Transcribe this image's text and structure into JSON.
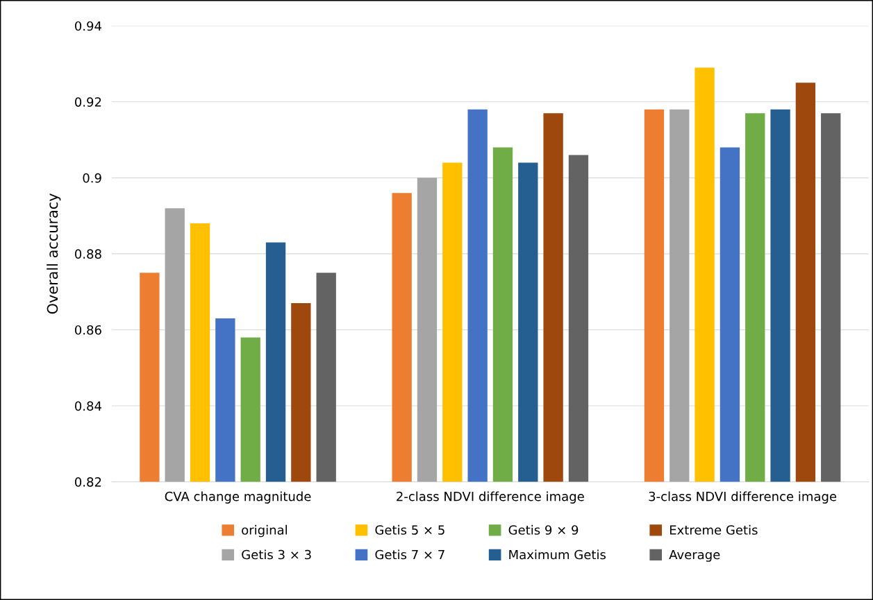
{
  "chart_data": {
    "type": "bar",
    "ylabel": "Overall accuracy",
    "categories": [
      "CVA change magnitude",
      "2-class NDVI difference image",
      "3-class NDVI difference image"
    ],
    "series": [
      {
        "name": "original",
        "color": "#ed7d31",
        "values": [
          0.875,
          0.896,
          0.918
        ]
      },
      {
        "name": "Getis 3 × 3",
        "color": "#a5a5a5",
        "values": [
          0.892,
          0.9,
          0.918
        ]
      },
      {
        "name": "Getis 5 × 5",
        "color": "#ffc000",
        "values": [
          0.888,
          0.904,
          0.929
        ]
      },
      {
        "name": "Getis 7 × 7",
        "color": "#4472c4",
        "values": [
          0.863,
          0.918,
          0.908
        ]
      },
      {
        "name": "Getis 9 × 9",
        "color": "#70ad47",
        "values": [
          0.858,
          0.908,
          0.917
        ]
      },
      {
        "name": "Maximum Getis",
        "color": "#255e91",
        "values": [
          0.883,
          0.904,
          0.918
        ]
      },
      {
        "name": "Extreme Getis",
        "color": "#9e480e",
        "values": [
          0.867,
          0.917,
          0.925
        ]
      },
      {
        "name": "Average",
        "color": "#636363",
        "values": [
          0.875,
          0.906,
          0.917
        ]
      }
    ],
    "ylim": [
      0.82,
      0.94
    ],
    "yticks": [
      0.82,
      0.84,
      0.86,
      0.88,
      {
        "value": 0.9,
        "label": "0.9"
      },
      0.92,
      0.94
    ],
    "grid": "y",
    "legend": "bottom"
  }
}
